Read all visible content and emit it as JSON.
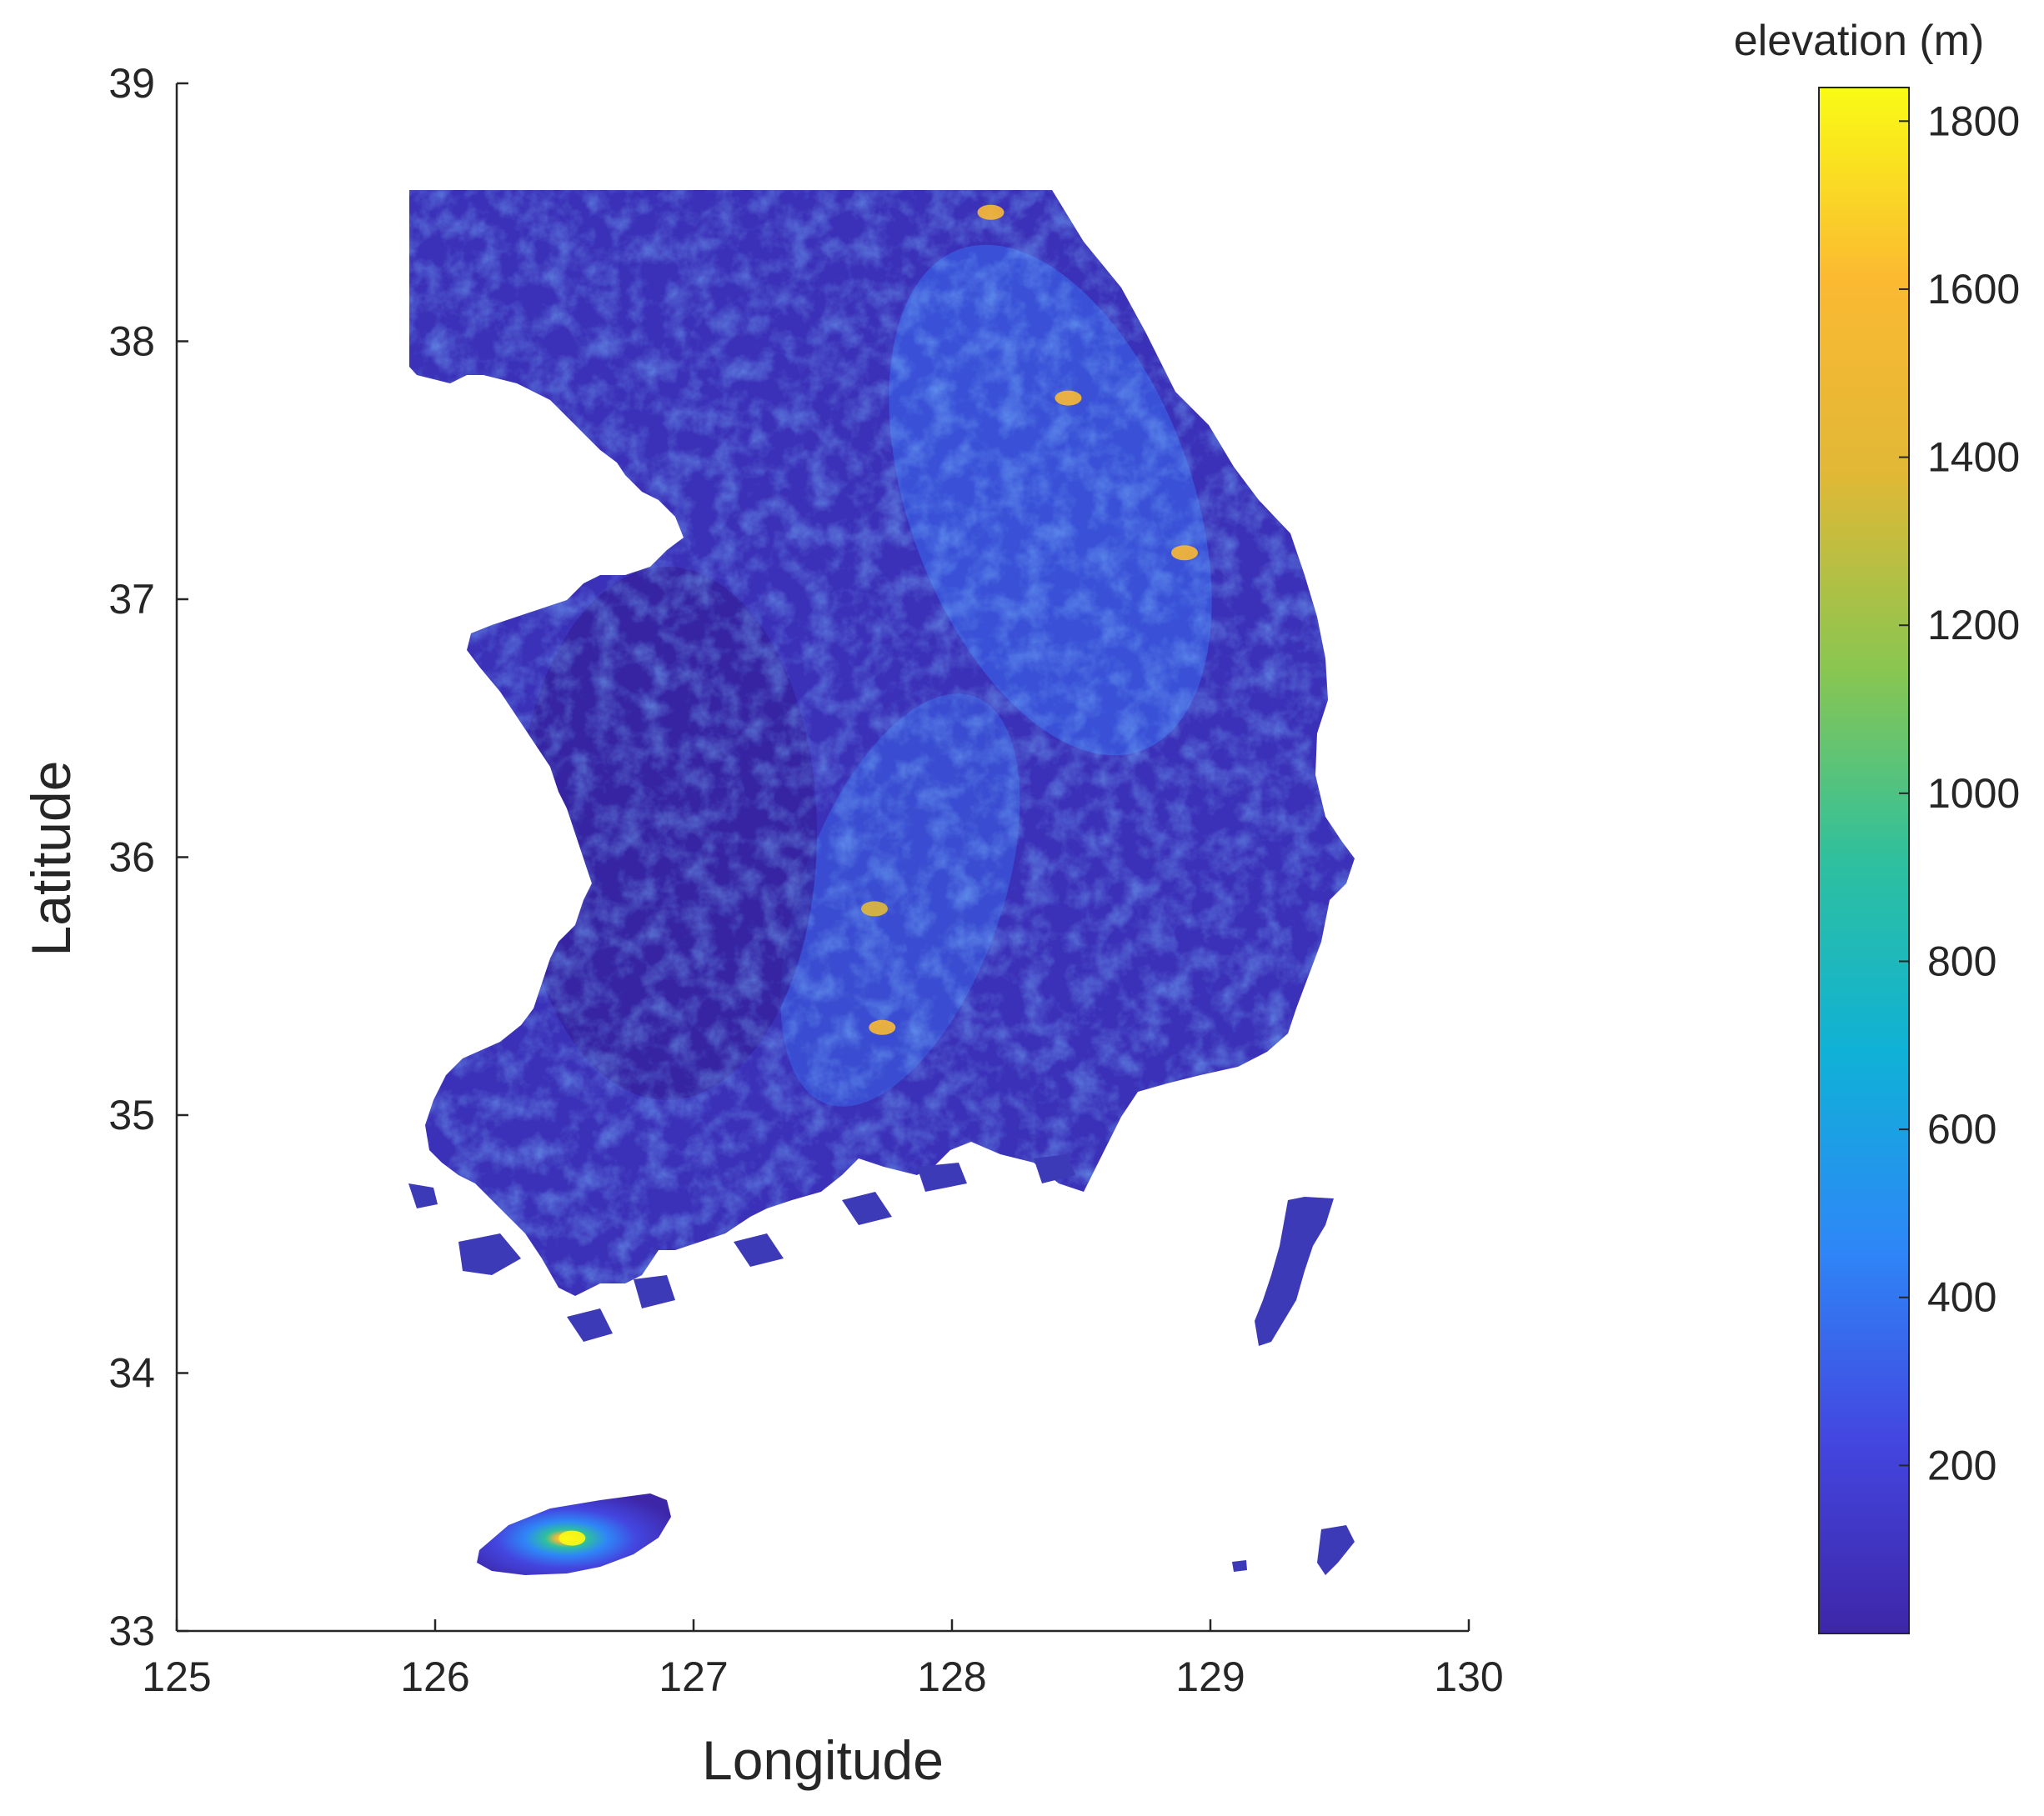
{
  "chart_data": {
    "type": "heatmap",
    "title": "",
    "xlabel": "Longitude",
    "ylabel": "Latitude",
    "xlim": [
      125,
      130
    ],
    "ylim": [
      33,
      39
    ],
    "x_ticks": [
      "125",
      "126",
      "127",
      "128",
      "129",
      "130"
    ],
    "y_ticks": [
      "33",
      "34",
      "35",
      "36",
      "37",
      "38",
      "39"
    ],
    "grid": false,
    "colorbar": {
      "title": "elevation (m)",
      "range": [
        0,
        1840
      ],
      "ticks": [
        "200",
        "400",
        "600",
        "800",
        "1000",
        "1200",
        "1400",
        "1600",
        "1800"
      ],
      "colormap": "parula",
      "colors": [
        "#3e26a8",
        "#4346e0",
        "#2e87f7",
        "#0fb1d7",
        "#2ec09e",
        "#8ac650",
        "#e1b836",
        "#fbb932",
        "#f9fb15"
      ]
    },
    "peaks": [
      {
        "name": "",
        "lon": 126.53,
        "lat": 33.36,
        "elevation": 1840
      },
      {
        "name": "",
        "lon": 127.73,
        "lat": 35.34,
        "elevation": 1700
      },
      {
        "name": "",
        "lon": 128.45,
        "lat": 37.78,
        "elevation": 1650
      },
      {
        "name": "",
        "lon": 128.9,
        "lat": 37.18,
        "elevation": 1550
      },
      {
        "name": "",
        "lon": 127.7,
        "lat": 35.8,
        "elevation": 1400
      },
      {
        "name": "",
        "lon": 128.15,
        "lat": 38.5,
        "elevation": 1500
      }
    ]
  }
}
